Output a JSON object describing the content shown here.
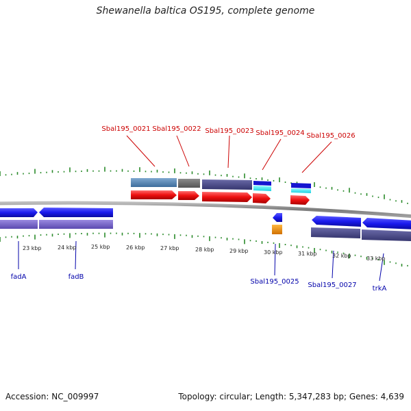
{
  "title": "Shewanella baltica OS195, complete genome",
  "accession": "Accession: NC_009997",
  "topology": "Topology: circular; Length: 5,347,283 bp; Genes: 4,639",
  "colors": {
    "ticks": "#2a8a2a",
    "forward_cds": "#ee1111",
    "reverse_cds": "#1a1aee",
    "forward_label": "#cc0000",
    "reverse_label": "#0000aa",
    "backbone": "#888888"
  },
  "scale": {
    "unit": "kbp",
    "labels": [
      "23 kbp",
      "24 kbp",
      "25 kbp",
      "26 kbp",
      "27 kbp",
      "28 kbp",
      "29 kbp",
      "30 kbp",
      "31 kbp",
      "32 kbp",
      "33 kbp"
    ]
  },
  "top_labels": [
    "Sbal195_0021",
    "Sbal195_0022",
    "Sbal195_0023",
    "Sbal195_0024",
    "Sbal195_0026"
  ],
  "bottom_labels": [
    "fadA",
    "fadB",
    "Sbal195_0025",
    "Sbal195_0027",
    "trkA"
  ]
}
